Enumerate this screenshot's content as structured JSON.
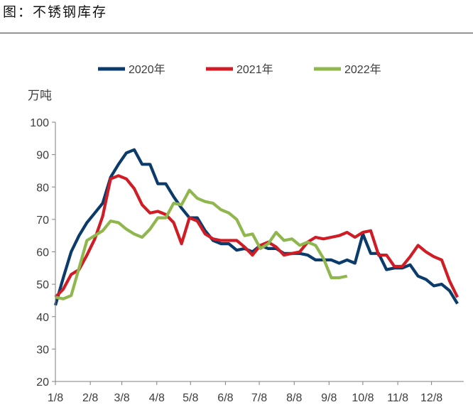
{
  "figure": {
    "title": "图：不锈钢库存"
  },
  "chart_data": {
    "type": "line",
    "ylabel": "万吨",
    "ylim": [
      20,
      100
    ],
    "yticks": [
      20,
      30,
      40,
      50,
      60,
      70,
      80,
      90,
      100
    ],
    "xlim": [
      0,
      51.8
    ],
    "x_ticks": [
      {
        "label": "1/8",
        "x": 0
      },
      {
        "label": "2/8",
        "x": 4.43
      },
      {
        "label": "3/8",
        "x": 8.43
      },
      {
        "label": "4/8",
        "x": 12.86
      },
      {
        "label": "5/8",
        "x": 17.14
      },
      {
        "label": "6/8",
        "x": 21.57
      },
      {
        "label": "7/8",
        "x": 25.86
      },
      {
        "label": "8/8",
        "x": 30.29
      },
      {
        "label": "9/8",
        "x": 34.71
      },
      {
        "label": "10/8",
        "x": 39
      },
      {
        "label": "11/8",
        "x": 43.43
      },
      {
        "label": "12/8",
        "x": 47.71
      }
    ],
    "grid": false,
    "legend_position": "top-center",
    "series": [
      {
        "name": "2020年",
        "color": "#0b3b6b",
        "points": [
          [
            0,
            43.5
          ],
          [
            1,
            52
          ],
          [
            2,
            60
          ],
          [
            3,
            65
          ],
          [
            4,
            69
          ],
          [
            5,
            72
          ],
          [
            6,
            75
          ],
          [
            7,
            83
          ],
          [
            8,
            87
          ],
          [
            9,
            90.5
          ],
          [
            10,
            91.5
          ],
          [
            11,
            87
          ],
          [
            12,
            87
          ],
          [
            13,
            81
          ],
          [
            14,
            81
          ],
          [
            15,
            77
          ],
          [
            16,
            73.5
          ],
          [
            17,
            70.5
          ],
          [
            18,
            70.5
          ],
          [
            19,
            66.5
          ],
          [
            20,
            63.5
          ],
          [
            21,
            62.5
          ],
          [
            22,
            62.5
          ],
          [
            23,
            60.5
          ],
          [
            24,
            61
          ],
          [
            25,
            60
          ],
          [
            26,
            62
          ],
          [
            27,
            61
          ],
          [
            28,
            61
          ],
          [
            29,
            59.5
          ],
          [
            30,
            59.5
          ],
          [
            31,
            59.5
          ],
          [
            32,
            59
          ],
          [
            33,
            57.5
          ],
          [
            34,
            57.5
          ],
          [
            35,
            57.5
          ],
          [
            36,
            56.5
          ],
          [
            37,
            57.5
          ],
          [
            38,
            56.5
          ],
          [
            39,
            65.5
          ],
          [
            40,
            59.5
          ],
          [
            41,
            59.5
          ],
          [
            42,
            54.5
          ],
          [
            43,
            55
          ],
          [
            44,
            55
          ],
          [
            45,
            56
          ],
          [
            46,
            52.5
          ],
          [
            47,
            51.5
          ],
          [
            48,
            49.5
          ],
          [
            49,
            50
          ],
          [
            50,
            48
          ],
          [
            51,
            44
          ]
        ]
      },
      {
        "name": "2021年",
        "color": "#d01c24",
        "points": [
          [
            0,
            46
          ],
          [
            1,
            48.5
          ],
          [
            2,
            53
          ],
          [
            3,
            54.5
          ],
          [
            4,
            59
          ],
          [
            5,
            64
          ],
          [
            6,
            71
          ],
          [
            7,
            82.5
          ],
          [
            8,
            83.5
          ],
          [
            9,
            82.5
          ],
          [
            10,
            79.5
          ],
          [
            11,
            74.5
          ],
          [
            12,
            72
          ],
          [
            13,
            72.5
          ],
          [
            14,
            71.5
          ],
          [
            15,
            69
          ],
          [
            16,
            62.5
          ],
          [
            17,
            70.5
          ],
          [
            18,
            69.5
          ],
          [
            19,
            65.5
          ],
          [
            20,
            64
          ],
          [
            21,
            63.5
          ],
          [
            22,
            63.5
          ],
          [
            23,
            63.5
          ],
          [
            24,
            61.5
          ],
          [
            25,
            59
          ],
          [
            26,
            62
          ],
          [
            27,
            63
          ],
          [
            28,
            61.5
          ],
          [
            29,
            59
          ],
          [
            30,
            59.5
          ],
          [
            31,
            60
          ],
          [
            32,
            63
          ],
          [
            33,
            64.5
          ],
          [
            34,
            64
          ],
          [
            35,
            64.5
          ],
          [
            36,
            65
          ],
          [
            37,
            66
          ],
          [
            38,
            64.5
          ],
          [
            39,
            66
          ],
          [
            40,
            66.5
          ],
          [
            41,
            59
          ],
          [
            42,
            59
          ],
          [
            43,
            55.5
          ],
          [
            44,
            55.5
          ],
          [
            45,
            58.5
          ],
          [
            46,
            62
          ],
          [
            47,
            60
          ],
          [
            48,
            58.5
          ],
          [
            49,
            57.5
          ],
          [
            50,
            51
          ],
          [
            51,
            46
          ]
        ]
      },
      {
        "name": "2022年",
        "color": "#8fb74e",
        "points": [
          [
            0,
            46
          ],
          [
            1,
            45.5
          ],
          [
            2,
            46.5
          ],
          [
            3,
            55
          ],
          [
            4,
            63.5
          ],
          [
            5,
            65
          ],
          [
            6,
            66.5
          ],
          [
            7,
            69.5
          ],
          [
            8,
            69
          ],
          [
            9,
            67
          ],
          [
            10,
            65.5
          ],
          [
            11,
            64.5
          ],
          [
            12,
            67
          ],
          [
            13,
            70.5
          ],
          [
            14,
            70.5
          ],
          [
            15,
            75
          ],
          [
            16,
            74.5
          ],
          [
            17,
            79
          ],
          [
            18,
            76.5
          ],
          [
            19,
            75.5
          ],
          [
            20,
            75
          ],
          [
            21,
            73
          ],
          [
            22,
            72
          ],
          [
            23,
            70
          ],
          [
            24,
            65
          ],
          [
            25,
            65.5
          ],
          [
            26,
            61
          ],
          [
            27,
            62.5
          ],
          [
            28,
            66
          ],
          [
            29,
            63.5
          ],
          [
            30,
            64
          ],
          [
            31,
            62
          ],
          [
            32,
            63
          ],
          [
            33,
            62
          ],
          [
            34,
            58
          ],
          [
            35,
            52
          ],
          [
            36,
            52
          ],
          [
            37,
            52.5
          ]
        ]
      }
    ]
  }
}
